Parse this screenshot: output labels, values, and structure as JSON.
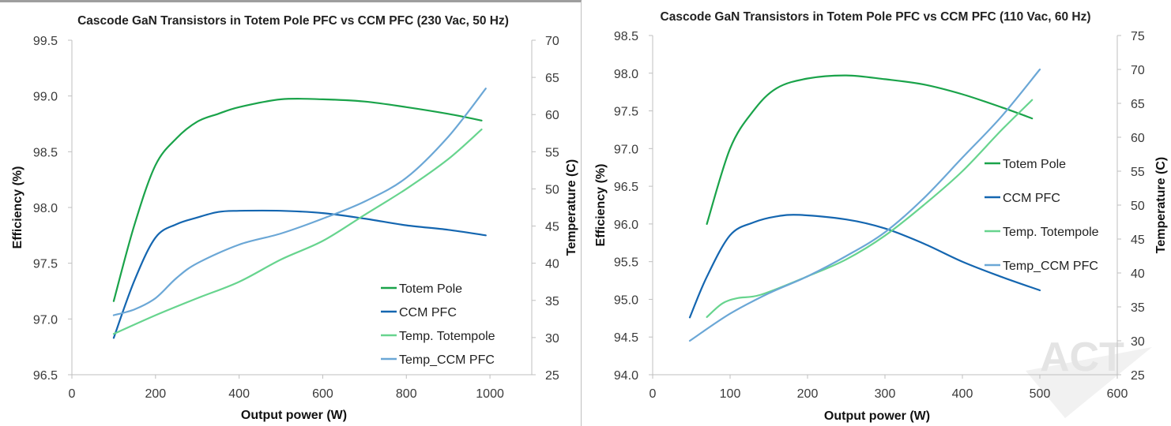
{
  "colors": {
    "totem": "#1aa34a",
    "ccm": "#1466b0",
    "temp_totem": "#67d48e",
    "temp_ccm": "#6ba7d6",
    "axis": "#bfbfbf"
  },
  "watermark": {
    "text": "ACT"
  },
  "chart_data": [
    {
      "type": "line",
      "title": "Cascode GaN Transistors in Totem Pole PFC vs CCM PFC (230 Vac, 50 Hz)",
      "xlabel": "Output power (W)",
      "ylabel": "Efficiency (%)",
      "y2label": "Temperature (C)",
      "xlim": [
        0,
        1100
      ],
      "ylim": [
        96.5,
        99.5
      ],
      "y2lim": [
        25,
        70
      ],
      "xticks": [
        0,
        200,
        400,
        600,
        800,
        1000
      ],
      "yticks": [
        "96.5",
        "97.0",
        "97.5",
        "98.0",
        "98.5",
        "99.0",
        "99.5"
      ],
      "y2ticks": [
        25,
        30,
        35,
        40,
        45,
        50,
        55,
        60,
        65,
        70
      ],
      "grid": false,
      "legend": "bottom-right",
      "series": [
        {
          "name": "Totem Pole",
          "axis": "left",
          "color_key": "totem",
          "x": [
            100,
            150,
            200,
            250,
            300,
            350,
            400,
            500,
            600,
            700,
            800,
            900,
            980
          ],
          "y": [
            97.16,
            97.85,
            98.38,
            98.62,
            98.77,
            98.84,
            98.9,
            98.97,
            98.97,
            98.95,
            98.9,
            98.84,
            98.78
          ]
        },
        {
          "name": "CCM PFC",
          "axis": "left",
          "color_key": "ccm",
          "x": [
            100,
            150,
            200,
            250,
            300,
            350,
            400,
            500,
            600,
            700,
            800,
            900,
            990
          ],
          "y": [
            96.83,
            97.35,
            97.73,
            97.85,
            97.91,
            97.96,
            97.97,
            97.97,
            97.95,
            97.9,
            97.84,
            97.8,
            97.75
          ]
        },
        {
          "name": "Temp. Totempole",
          "axis": "right",
          "color_key": "temp_totem",
          "x": [
            100,
            200,
            300,
            400,
            500,
            600,
            700,
            800,
            900,
            980
          ],
          "y": [
            30.5,
            33.0,
            35.3,
            37.5,
            40.5,
            43.0,
            46.5,
            50.0,
            54.0,
            58.0
          ]
        },
        {
          "name": "Temp_CCM PFC",
          "axis": "right",
          "color_key": "temp_ccm",
          "x": [
            100,
            150,
            200,
            250,
            300,
            400,
            500,
            600,
            700,
            800,
            900,
            990
          ],
          "y": [
            33.0,
            33.8,
            35.3,
            38.0,
            40.0,
            42.5,
            44.0,
            46.0,
            48.3,
            51.5,
            57.0,
            63.5
          ]
        }
      ]
    },
    {
      "type": "line",
      "title": "Cascode GaN Transistors in Totem Pole PFC vs CCM PFC (110 Vac, 60 Hz)",
      "xlabel": "Output power (W)",
      "ylabel": "Efficiency (%)",
      "y2label": "Temperature (C)",
      "xlim": [
        0,
        600
      ],
      "ylim": [
        94.0,
        98.5
      ],
      "y2lim": [
        25,
        75
      ],
      "xticks": [
        0,
        100,
        200,
        300,
        400,
        500,
        600
      ],
      "yticks": [
        "94.0",
        "94.5",
        "95.0",
        "95.5",
        "96.0",
        "96.5",
        "97.0",
        "97.5",
        "98.0",
        "98.5"
      ],
      "y2ticks": [
        25,
        30,
        35,
        40,
        45,
        50,
        55,
        60,
        65,
        70,
        75
      ],
      "grid": false,
      "legend": "right",
      "series": [
        {
          "name": "Totem Pole",
          "axis": "left",
          "color_key": "totem",
          "x": [
            70,
            100,
            130,
            160,
            200,
            250,
            300,
            350,
            400,
            450,
            490
          ],
          "y": [
            96.0,
            97.0,
            97.5,
            97.8,
            97.93,
            97.97,
            97.92,
            97.85,
            97.72,
            97.55,
            97.4
          ]
        },
        {
          "name": "CCM PFC",
          "axis": "left",
          "color_key": "ccm",
          "x": [
            48,
            70,
            100,
            130,
            160,
            190,
            250,
            300,
            350,
            400,
            450,
            500
          ],
          "y": [
            94.76,
            95.3,
            95.85,
            96.02,
            96.1,
            96.12,
            96.06,
            95.94,
            95.74,
            95.5,
            95.3,
            95.12
          ]
        },
        {
          "name": "Temp. Totempole",
          "axis": "right",
          "color_key": "temp_totem",
          "x": [
            70,
            90,
            110,
            140,
            200,
            250,
            300,
            350,
            400,
            450,
            490
          ],
          "y": [
            33.5,
            35.5,
            36.3,
            36.8,
            39.5,
            42.0,
            45.5,
            50.0,
            55.0,
            61.0,
            65.5
          ]
        },
        {
          "name": "Temp_CCM PFC",
          "axis": "right",
          "color_key": "temp_ccm",
          "x": [
            48,
            100,
            150,
            200,
            250,
            300,
            350,
            400,
            450,
            500
          ],
          "y": [
            30.0,
            34.0,
            37.0,
            39.5,
            42.5,
            46.0,
            51.0,
            57.0,
            63.0,
            70.0
          ]
        }
      ]
    }
  ]
}
